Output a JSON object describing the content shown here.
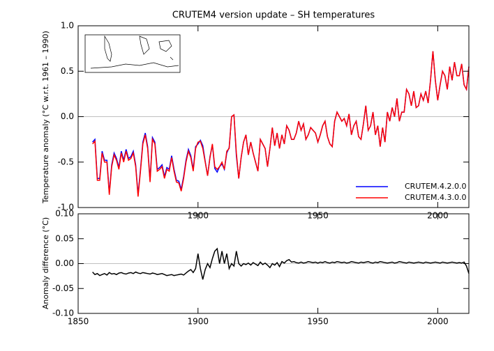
{
  "chart_data": [
    {
      "type": "line",
      "title": "CRUTEM4 version update – SH temperatures",
      "ylabel": "Temperature anomaly (°C w.r.t. 1961 – 1990)",
      "x": [
        1856,
        1857,
        1858,
        1859,
        1860,
        1861,
        1862,
        1863,
        1864,
        1865,
        1866,
        1867,
        1868,
        1869,
        1870,
        1871,
        1872,
        1873,
        1874,
        1875,
        1876,
        1877,
        1878,
        1879,
        1880,
        1881,
        1882,
        1883,
        1884,
        1885,
        1886,
        1887,
        1888,
        1889,
        1890,
        1891,
        1892,
        1893,
        1894,
        1895,
        1896,
        1897,
        1898,
        1899,
        1900,
        1901,
        1902,
        1903,
        1904,
        1905,
        1906,
        1907,
        1908,
        1909,
        1910,
        1911,
        1912,
        1913,
        1914,
        1915,
        1916,
        1917,
        1918,
        1919,
        1920,
        1921,
        1922,
        1923,
        1924,
        1925,
        1926,
        1927,
        1928,
        1929,
        1930,
        1931,
        1932,
        1933,
        1934,
        1935,
        1936,
        1937,
        1938,
        1939,
        1940,
        1941,
        1942,
        1943,
        1944,
        1945,
        1946,
        1947,
        1948,
        1949,
        1950,
        1951,
        1952,
        1953,
        1954,
        1955,
        1956,
        1957,
        1958,
        1959,
        1960,
        1961,
        1962,
        1963,
        1964,
        1965,
        1966,
        1967,
        1968,
        1969,
        1970,
        1971,
        1972,
        1973,
        1974,
        1975,
        1976,
        1977,
        1978,
        1979,
        1980,
        1981,
        1982,
        1983,
        1984,
        1985,
        1986,
        1987,
        1988,
        1989,
        1990,
        1991,
        1992,
        1993,
        1994,
        1995,
        1996,
        1997,
        1998,
        1999,
        2000,
        2001,
        2002,
        2003,
        2004,
        2005,
        2006,
        2007,
        2008,
        2009,
        2010,
        2011,
        2012,
        2013
      ],
      "series": [
        {
          "name": "CRUTEM.4.2.0.0",
          "color": "#0000ff",
          "values": [
            -0.28,
            -0.25,
            -0.68,
            -0.68,
            -0.38,
            -0.48,
            -0.48,
            -0.84,
            -0.53,
            -0.4,
            -0.46,
            -0.56,
            -0.38,
            -0.48,
            -0.36,
            -0.46,
            -0.44,
            -0.38,
            -0.53,
            -0.86,
            -0.58,
            -0.28,
            -0.18,
            -0.33,
            -0.7,
            -0.23,
            -0.28,
            -0.58,
            -0.56,
            -0.53,
            -0.66,
            -0.56,
            -0.58,
            -0.43,
            -0.58,
            -0.7,
            -0.71,
            -0.8,
            -0.66,
            -0.48,
            -0.36,
            -0.43,
            -0.58,
            -0.33,
            -0.3,
            -0.26,
            -0.32,
            -0.49,
            -0.65,
            -0.44,
            -0.31,
            -0.57,
            -0.61,
            -0.55,
            -0.52,
            -0.58,
            -0.4,
            -0.34,
            0.0,
            0.02,
            -0.43,
            -0.68,
            -0.45,
            -0.28,
            -0.2,
            -0.42,
            -0.28,
            -0.4,
            -0.5,
            -0.6,
            -0.25,
            -0.3,
            -0.35,
            -0.55,
            -0.35,
            -0.12,
            -0.32,
            -0.18,
            -0.35,
            -0.2,
            -0.3,
            -0.1,
            -0.15,
            -0.25,
            -0.25,
            -0.18,
            -0.05,
            -0.15,
            -0.08,
            -0.25,
            -0.2,
            -0.12,
            -0.15,
            -0.18,
            -0.28,
            -0.2,
            -0.1,
            -0.05,
            -0.22,
            -0.3,
            -0.33,
            -0.05,
            0.05,
            0.0,
            -0.05,
            -0.02,
            -0.1,
            0.03,
            -0.2,
            -0.1,
            -0.05,
            -0.22,
            -0.25,
            -0.08,
            0.12,
            -0.15,
            -0.1,
            0.05,
            -0.2,
            -0.1,
            -0.33,
            -0.12,
            -0.28,
            0.05,
            -0.05,
            0.1,
            0.0,
            0.2,
            -0.05,
            0.05,
            0.05,
            0.3,
            0.25,
            0.12,
            0.28,
            0.1,
            0.12,
            0.25,
            0.18,
            0.28,
            0.15,
            0.4,
            0.72,
            0.4,
            0.18,
            0.35,
            0.5,
            0.45,
            0.3,
            0.55,
            0.4,
            0.6,
            0.45,
            0.45,
            0.58,
            0.35,
            0.3,
            0.55
          ]
        },
        {
          "name": "CRUTEM.4.3.0.0",
          "color": "#ff0000",
          "values": [
            -0.3,
            -0.27,
            -0.7,
            -0.7,
            -0.4,
            -0.5,
            -0.5,
            -0.86,
            -0.55,
            -0.42,
            -0.48,
            -0.58,
            -0.4,
            -0.5,
            -0.38,
            -0.48,
            -0.46,
            -0.4,
            -0.55,
            -0.88,
            -0.6,
            -0.3,
            -0.2,
            -0.35,
            -0.72,
            -0.25,
            -0.3,
            -0.6,
            -0.58,
            -0.55,
            -0.68,
            -0.58,
            -0.6,
            -0.45,
            -0.6,
            -0.72,
            -0.73,
            -0.82,
            -0.68,
            -0.5,
            -0.38,
            -0.45,
            -0.6,
            -0.35,
            -0.28,
            -0.27,
            -0.35,
            -0.5,
            -0.65,
            -0.45,
            -0.3,
            -0.55,
            -0.58,
            -0.55,
            -0.5,
            -0.58,
            -0.38,
            -0.35,
            0.0,
            0.02,
            -0.4,
            -0.68,
            -0.45,
            -0.28,
            -0.2,
            -0.42,
            -0.28,
            -0.4,
            -0.5,
            -0.6,
            -0.25,
            -0.3,
            -0.35,
            -0.55,
            -0.35,
            -0.12,
            -0.32,
            -0.18,
            -0.35,
            -0.2,
            -0.3,
            -0.1,
            -0.15,
            -0.25,
            -0.25,
            -0.18,
            -0.05,
            -0.15,
            -0.08,
            -0.25,
            -0.2,
            -0.12,
            -0.15,
            -0.18,
            -0.28,
            -0.2,
            -0.1,
            -0.05,
            -0.22,
            -0.3,
            -0.33,
            -0.05,
            0.05,
            0.0,
            -0.05,
            -0.02,
            -0.1,
            0.03,
            -0.2,
            -0.1,
            -0.05,
            -0.22,
            -0.25,
            -0.08,
            0.12,
            -0.15,
            -0.1,
            0.05,
            -0.2,
            -0.1,
            -0.33,
            -0.12,
            -0.28,
            0.05,
            -0.05,
            0.1,
            0.0,
            0.2,
            -0.05,
            0.05,
            0.05,
            0.3,
            0.25,
            0.12,
            0.28,
            0.1,
            0.12,
            0.25,
            0.18,
            0.28,
            0.15,
            0.4,
            0.72,
            0.4,
            0.18,
            0.35,
            0.5,
            0.45,
            0.3,
            0.55,
            0.4,
            0.6,
            0.45,
            0.45,
            0.58,
            0.35,
            0.3,
            0.55
          ]
        }
      ],
      "xlim": [
        1850,
        2013
      ],
      "xticks": [
        1900,
        1950,
        2000
      ],
      "ylim": [
        -1.0,
        1.0
      ],
      "yticks": [
        {
          "value": -1.0,
          "label": "-1.0"
        },
        -0.5,
        {
          "value": 0.0,
          "label": "0.0"
        },
        0.5,
        {
          "value": 1.0,
          "label": "1.0"
        }
      ],
      "legend": "lower right"
    },
    {
      "type": "line",
      "ylabel": "Anomaly difference (°C)",
      "color": "#000000",
      "x": [
        1856,
        1857,
        1858,
        1859,
        1860,
        1861,
        1862,
        1863,
        1864,
        1865,
        1866,
        1867,
        1868,
        1869,
        1870,
        1871,
        1872,
        1873,
        1874,
        1875,
        1876,
        1877,
        1878,
        1879,
        1880,
        1881,
        1882,
        1883,
        1884,
        1885,
        1886,
        1887,
        1888,
        1889,
        1890,
        1891,
        1892,
        1893,
        1894,
        1895,
        1896,
        1897,
        1898,
        1899,
        1900,
        1901,
        1902,
        1903,
        1904,
        1905,
        1906,
        1907,
        1908,
        1909,
        1910,
        1911,
        1912,
        1913,
        1914,
        1915,
        1916,
        1917,
        1918,
        1919,
        1920,
        1921,
        1922,
        1923,
        1924,
        1925,
        1926,
        1927,
        1928,
        1929,
        1930,
        1931,
        1932,
        1933,
        1934,
        1935,
        1936,
        1937,
        1938,
        1939,
        1940,
        1941,
        1942,
        1943,
        1944,
        1945,
        1946,
        1947,
        1948,
        1949,
        1950,
        1951,
        1952,
        1953,
        1954,
        1955,
        1956,
        1957,
        1958,
        1959,
        1960,
        1961,
        1962,
        1963,
        1964,
        1965,
        1966,
        1967,
        1968,
        1969,
        1970,
        1971,
        1972,
        1973,
        1974,
        1975,
        1976,
        1977,
        1978,
        1979,
        1980,
        1981,
        1982,
        1983,
        1984,
        1985,
        1986,
        1987,
        1988,
        1989,
        1990,
        1991,
        1992,
        1993,
        1994,
        1995,
        1996,
        1997,
        1998,
        1999,
        2000,
        2001,
        2002,
        2003,
        2004,
        2005,
        2006,
        2007,
        2008,
        2009,
        2010,
        2011,
        2012,
        2013
      ],
      "values": [
        -0.017,
        -0.022,
        -0.02,
        -0.024,
        -0.022,
        -0.02,
        -0.023,
        -0.018,
        -0.021,
        -0.02,
        -0.022,
        -0.019,
        -0.018,
        -0.02,
        -0.021,
        -0.019,
        -0.018,
        -0.02,
        -0.017,
        -0.019,
        -0.02,
        -0.018,
        -0.019,
        -0.02,
        -0.021,
        -0.019,
        -0.02,
        -0.022,
        -0.021,
        -0.02,
        -0.022,
        -0.024,
        -0.023,
        -0.022,
        -0.024,
        -0.023,
        -0.022,
        -0.021,
        -0.023,
        -0.019,
        -0.015,
        -0.012,
        -0.018,
        -0.01,
        0.02,
        -0.01,
        -0.032,
        -0.012,
        0.0,
        -0.008,
        0.01,
        0.025,
        0.03,
        0.0,
        0.025,
        0.0,
        0.02,
        -0.01,
        0.0,
        -0.005,
        0.025,
        0.0,
        -0.005,
        0.0,
        -0.002,
        0.001,
        -0.003,
        0.002,
        -0.001,
        -0.004,
        0.003,
        -0.002,
        0.001,
        -0.003,
        -0.008,
        0.0,
        -0.003,
        0.002,
        -0.006,
        0.004,
        0.001,
        0.006,
        0.008,
        0.003,
        0.004,
        0.002,
        0.001,
        0.003,
        0.001,
        0.002,
        0.004,
        0.003,
        0.002,
        0.003,
        0.001,
        0.003,
        0.002,
        0.004,
        0.002,
        0.001,
        0.003,
        0.002,
        0.004,
        0.003,
        0.002,
        0.003,
        0.001,
        0.002,
        0.004,
        0.003,
        0.002,
        0.001,
        0.003,
        0.002,
        0.003,
        0.004,
        0.002,
        0.001,
        0.003,
        0.002,
        0.004,
        0.003,
        0.002,
        0.001,
        0.002,
        0.003,
        0.001,
        0.002,
        0.004,
        0.003,
        0.002,
        0.001,
        0.003,
        0.002,
        0.001,
        0.002,
        0.003,
        0.002,
        0.001,
        0.003,
        0.002,
        0.001,
        0.002,
        0.003,
        0.002,
        0.001,
        0.003,
        0.002,
        0.001,
        0.002,
        0.003,
        0.002,
        0.001,
        0.002,
        0.001,
        0.003,
        -0.005,
        -0.02
      ],
      "xlim": [
        1850,
        2013
      ],
      "xticks": [
        1850,
        1900,
        1950,
        2000
      ],
      "ylim": [
        -0.1,
        0.1
      ],
      "yticks": [
        {
          "value": -0.1,
          "label": "-0.10"
        },
        -0.05,
        {
          "value": 0.0,
          "label": "0.00"
        },
        0.05,
        {
          "value": 0.1,
          "label": "0.10"
        }
      ]
    }
  ]
}
